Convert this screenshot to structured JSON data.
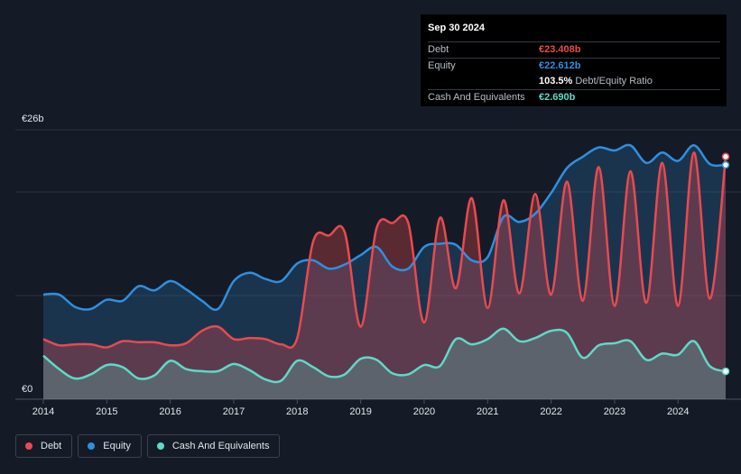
{
  "tooltip": {
    "date": "Sep 30 2024",
    "rows": [
      {
        "label": "Debt",
        "value": "€23.408b",
        "color": "#e84a4f"
      },
      {
        "label": "Equity",
        "value": "€22.612b",
        "color": "#2f8fe0"
      },
      {
        "label": "",
        "value": "103.5%",
        "suffix": "Debt/Equity Ratio",
        "color": "#ffffff"
      },
      {
        "label": "Cash And Equivalents",
        "value": "€2.690b",
        "color": "#5fd9c8"
      }
    ]
  },
  "legend": [
    {
      "label": "Debt",
      "color": "#e84a4f"
    },
    {
      "label": "Equity",
      "color": "#2f8fe0"
    },
    {
      "label": "Cash And Equivalents",
      "color": "#5fd9c8"
    }
  ],
  "chart_data": {
    "type": "area",
    "ylabel_top": "€26b",
    "ylabel_bottom": "€0",
    "ylim": [
      0,
      26
    ],
    "xlim": [
      2014,
      2024.75
    ],
    "x_ticks": [
      "2014",
      "2015",
      "2016",
      "2017",
      "2018",
      "2019",
      "2020",
      "2021",
      "2022",
      "2023",
      "2024"
    ],
    "grid": true,
    "legend_position": "bottom-left",
    "series": [
      {
        "name": "Debt",
        "color": "#e84a4f",
        "points": [
          [
            2014.0,
            5.8
          ],
          [
            2014.25,
            5.2
          ],
          [
            2014.5,
            5.3
          ],
          [
            2014.75,
            5.3
          ],
          [
            2015.0,
            5.0
          ],
          [
            2015.25,
            5.6
          ],
          [
            2015.5,
            5.5
          ],
          [
            2015.75,
            5.5
          ],
          [
            2016.0,
            5.2
          ],
          [
            2016.25,
            5.4
          ],
          [
            2016.5,
            6.6
          ],
          [
            2016.75,
            7.0
          ],
          [
            2017.0,
            5.8
          ],
          [
            2017.25,
            5.9
          ],
          [
            2017.5,
            5.8
          ],
          [
            2017.75,
            5.3
          ],
          [
            2018.0,
            5.9
          ],
          [
            2018.25,
            15.2
          ],
          [
            2018.5,
            15.8
          ],
          [
            2018.75,
            16.1
          ],
          [
            2019.0,
            7.0
          ],
          [
            2019.25,
            16.5
          ],
          [
            2019.5,
            17.0
          ],
          [
            2019.75,
            17.0
          ],
          [
            2020.0,
            7.4
          ],
          [
            2020.25,
            17.5
          ],
          [
            2020.5,
            10.7
          ],
          [
            2020.75,
            19.4
          ],
          [
            2021.0,
            8.8
          ],
          [
            2021.25,
            19.2
          ],
          [
            2021.5,
            10.2
          ],
          [
            2021.75,
            19.8
          ],
          [
            2022.0,
            10.1
          ],
          [
            2022.25,
            21.0
          ],
          [
            2022.5,
            9.5
          ],
          [
            2022.75,
            22.4
          ],
          [
            2023.0,
            9.0
          ],
          [
            2023.25,
            22.0
          ],
          [
            2023.5,
            9.3
          ],
          [
            2023.75,
            22.8
          ],
          [
            2024.0,
            9.0
          ],
          [
            2024.25,
            23.8
          ],
          [
            2024.5,
            9.7
          ],
          [
            2024.75,
            23.408
          ]
        ]
      },
      {
        "name": "Equity",
        "color": "#2f8fe0",
        "points": [
          [
            2014.0,
            10.1
          ],
          [
            2014.25,
            10.1
          ],
          [
            2014.5,
            8.9
          ],
          [
            2014.75,
            8.7
          ],
          [
            2015.0,
            9.6
          ],
          [
            2015.25,
            9.5
          ],
          [
            2015.5,
            10.9
          ],
          [
            2015.75,
            10.5
          ],
          [
            2016.0,
            11.4
          ],
          [
            2016.25,
            10.6
          ],
          [
            2016.5,
            9.5
          ],
          [
            2016.75,
            8.7
          ],
          [
            2017.0,
            11.4
          ],
          [
            2017.25,
            12.2
          ],
          [
            2017.5,
            11.6
          ],
          [
            2017.75,
            11.4
          ],
          [
            2018.0,
            13.1
          ],
          [
            2018.25,
            13.4
          ],
          [
            2018.5,
            12.6
          ],
          [
            2018.75,
            13.0
          ],
          [
            2019.0,
            13.9
          ],
          [
            2019.25,
            14.7
          ],
          [
            2019.5,
            12.8
          ],
          [
            2019.75,
            12.6
          ],
          [
            2020.0,
            14.7
          ],
          [
            2020.25,
            15.0
          ],
          [
            2020.5,
            14.9
          ],
          [
            2020.75,
            13.4
          ],
          [
            2021.0,
            13.7
          ],
          [
            2021.25,
            17.6
          ],
          [
            2021.5,
            17.1
          ],
          [
            2021.75,
            17.9
          ],
          [
            2022.0,
            19.9
          ],
          [
            2022.25,
            22.3
          ],
          [
            2022.5,
            23.4
          ],
          [
            2022.75,
            24.3
          ],
          [
            2023.0,
            24.0
          ],
          [
            2023.25,
            24.5
          ],
          [
            2023.5,
            22.8
          ],
          [
            2023.75,
            23.8
          ],
          [
            2024.0,
            23.0
          ],
          [
            2024.25,
            24.5
          ],
          [
            2024.5,
            22.7
          ],
          [
            2024.75,
            22.612
          ]
        ]
      },
      {
        "name": "Cash And Equivalents",
        "color": "#5fd9c8",
        "points": [
          [
            2014.0,
            4.2
          ],
          [
            2014.25,
            2.9
          ],
          [
            2014.5,
            2.0
          ],
          [
            2014.75,
            2.4
          ],
          [
            2015.0,
            3.3
          ],
          [
            2015.25,
            3.1
          ],
          [
            2015.5,
            2.0
          ],
          [
            2015.75,
            2.3
          ],
          [
            2016.0,
            3.7
          ],
          [
            2016.25,
            2.9
          ],
          [
            2016.5,
            2.7
          ],
          [
            2016.75,
            2.7
          ],
          [
            2017.0,
            3.4
          ],
          [
            2017.25,
            2.8
          ],
          [
            2017.5,
            1.9
          ],
          [
            2017.75,
            1.8
          ],
          [
            2018.0,
            3.7
          ],
          [
            2018.25,
            3.1
          ],
          [
            2018.5,
            2.2
          ],
          [
            2018.75,
            2.4
          ],
          [
            2019.0,
            3.9
          ],
          [
            2019.25,
            3.8
          ],
          [
            2019.5,
            2.5
          ],
          [
            2019.75,
            2.4
          ],
          [
            2020.0,
            3.3
          ],
          [
            2020.25,
            3.2
          ],
          [
            2020.5,
            5.8
          ],
          [
            2020.75,
            5.3
          ],
          [
            2021.0,
            5.8
          ],
          [
            2021.25,
            6.8
          ],
          [
            2021.5,
            5.6
          ],
          [
            2021.75,
            5.9
          ],
          [
            2022.0,
            6.6
          ],
          [
            2022.25,
            6.4
          ],
          [
            2022.5,
            4.0
          ],
          [
            2022.75,
            5.2
          ],
          [
            2023.0,
            5.4
          ],
          [
            2023.25,
            5.6
          ],
          [
            2023.5,
            3.8
          ],
          [
            2023.75,
            4.4
          ],
          [
            2024.0,
            4.3
          ],
          [
            2024.25,
            5.6
          ],
          [
            2024.5,
            3.2
          ],
          [
            2024.75,
            2.69
          ]
        ]
      }
    ]
  }
}
